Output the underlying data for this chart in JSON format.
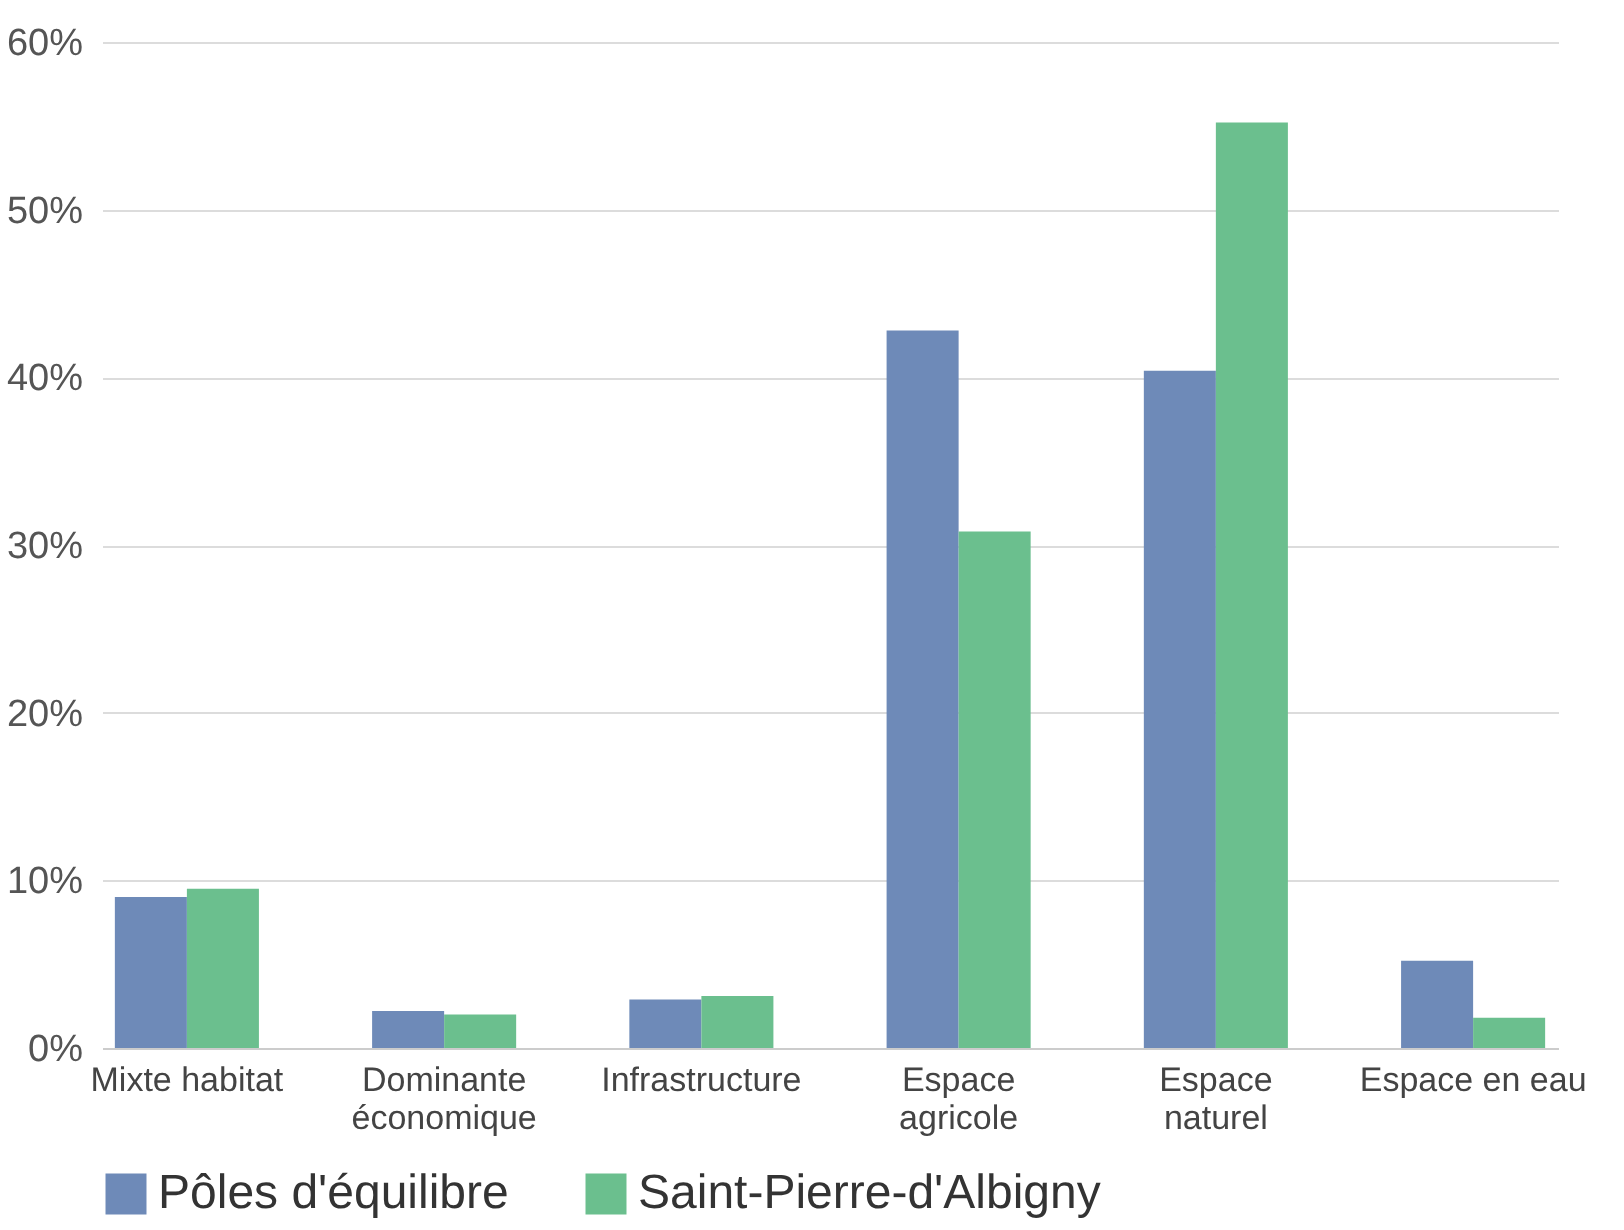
{
  "chart_data": {
    "type": "bar",
    "categories": [
      "Mixte habitat",
      "Dominante économique",
      "Infrastructure",
      "Espace agricole",
      "Espace naturel",
      "Espace en eau"
    ],
    "series": [
      {
        "name": "Pôles d'équilibre",
        "color": "#6e8ab8",
        "values": [
          9.0,
          2.2,
          2.9,
          42.8,
          40.4,
          5.2
        ]
      },
      {
        "name": "Saint-Pierre-d'Albigny",
        "color": "#6bbf8e",
        "values": [
          9.5,
          2.0,
          3.1,
          30.8,
          55.2,
          1.8
        ]
      }
    ],
    "ylim": [
      0,
      60
    ],
    "yticks": [
      {
        "value": 0,
        "label": "0%"
      },
      {
        "value": 10,
        "label": "10%"
      },
      {
        "value": 20,
        "label": "20%"
      },
      {
        "value": 30,
        "label": "30%"
      },
      {
        "value": 40,
        "label": "40%"
      },
      {
        "value": 50,
        "label": "50%"
      },
      {
        "value": 60,
        "label": "60%"
      }
    ],
    "grid": "y",
    "legend": "bottom"
  }
}
